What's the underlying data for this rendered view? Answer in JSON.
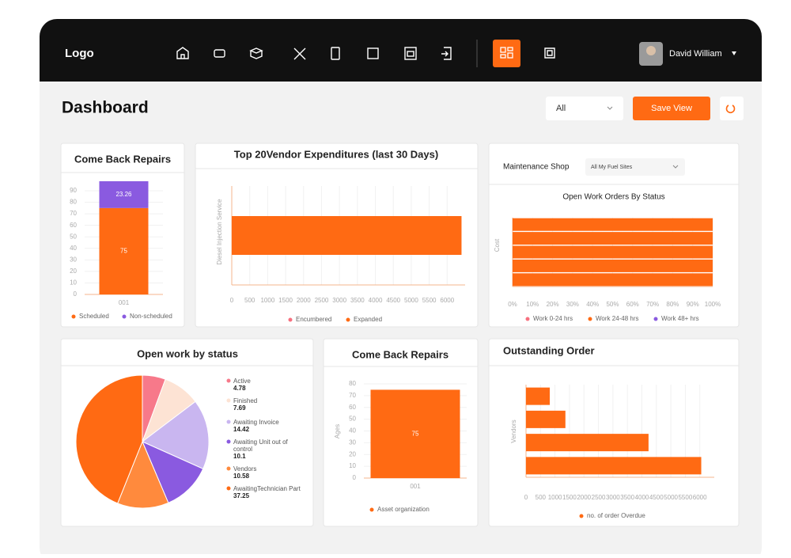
{
  "nav": {
    "logo": "Logo",
    "user": "David William"
  },
  "header": {
    "title": "Dashboard",
    "filter": "All",
    "button": "Save View"
  },
  "panels": {
    "come_back_repairs": {
      "type": "vbar",
      "title": "Come Back Repairs",
      "categories": [
        "001"
      ],
      "series": [
        {
          "name": "Scheduled",
          "color": "#ff6a13",
          "values": [
            75
          ]
        },
        {
          "name": "Non-scheduled",
          "color": "#8a5ae0",
          "values": [
            23.26
          ]
        }
      ],
      "ylim": [
        0,
        90
      ],
      "yticks": [
        0,
        10,
        20,
        30,
        40,
        50,
        60,
        70,
        80,
        90
      ],
      "grid": true
    },
    "vendor_expenditures": {
      "type": "hbar",
      "title": "Top 20Vendor Expenditures (last 30 Days)",
      "ylabel": "Diesel Injection Service",
      "categories": [
        null
      ],
      "series": [
        {
          "name": "Encumbered",
          "color": "#f7707f",
          "values": [
            0
          ]
        },
        {
          "name": "Expanded",
          "color": "#ff6a13",
          "values": [
            6400
          ]
        }
      ],
      "xlim": [
        0,
        6500
      ],
      "xticks": [
        0,
        500,
        1000,
        1500,
        2000,
        2500,
        3000,
        3500,
        4000,
        4500,
        5000,
        5500,
        6000
      ],
      "grid": true
    },
    "work_orders": {
      "type": "hbar",
      "label": "Maintenance Shop",
      "select": "All My Fuel Sites",
      "title": "Open Work Orders By Status",
      "ylabel": "Cost",
      "categories": [
        null,
        null,
        null,
        null,
        null
      ],
      "series": [
        {
          "name": "Work 0-24 hrs",
          "color": "#f7707f",
          "values": [
            0,
            0,
            0,
            0,
            0
          ]
        },
        {
          "name": "Work 24-48 hrs",
          "color": "#ff6a13",
          "values": [
            100,
            100,
            100,
            100,
            100
          ]
        },
        {
          "name": "Work 48+ hrs",
          "color": "#8a5ae0",
          "values": [
            0,
            0,
            0,
            0,
            0
          ]
        }
      ],
      "xlim": [
        0,
        100
      ],
      "xticks": [
        {
          "value": 0,
          "label": "0%"
        },
        {
          "value": 10,
          "label": "10%"
        },
        {
          "value": 20,
          "label": "20%"
        },
        {
          "value": 30,
          "label": "30%"
        },
        {
          "value": 40,
          "label": "40%"
        },
        {
          "value": 50,
          "label": "50%"
        },
        {
          "value": 60,
          "label": "60%"
        },
        {
          "value": 70,
          "label": "70%"
        },
        {
          "value": 80,
          "label": "80%"
        },
        {
          "value": 90,
          "label": "90%"
        },
        {
          "value": 100,
          "label": "100%"
        }
      ],
      "grid": true
    },
    "open_work": {
      "type": "pie",
      "title": "Open work by status",
      "categories": [
        "Active",
        "Finished",
        "Awaiting Invoice",
        "Awaiting Unit out of control",
        "Vendors",
        "AwaitingTechnician Part"
      ],
      "values": [
        4.78,
        7.69,
        14.42,
        10.1,
        10.58,
        37.25
      ],
      "colors": [
        "#f7798a",
        "#fde3d4",
        "#c9b6f0",
        "#8a5ae0",
        "#ff8a3d",
        "#ff6a13"
      ]
    },
    "asset_repairs": {
      "type": "vbar",
      "title": "Come Back Repairs",
      "ylabel": "Ages",
      "categories": [
        "001"
      ],
      "series": [
        {
          "name": "Asset organization",
          "color": "#ff6a13",
          "values": [
            75
          ]
        }
      ],
      "ylim": [
        0,
        80
      ],
      "yticks": [
        0,
        10,
        20,
        30,
        40,
        50,
        60,
        70,
        80
      ],
      "grid": true
    },
    "outstanding": {
      "type": "hbar",
      "title": "Outstanding Order",
      "ylabel": "Vendors",
      "categories": [
        null,
        null,
        null,
        null
      ],
      "series": [
        {
          "name": "no. of order Overdue",
          "color": "#ff6a13",
          "values": [
            820,
            1360,
            4230,
            6050
          ]
        }
      ],
      "xlim": [
        0,
        6500
      ],
      "xticks": [
        0,
        500,
        1000,
        1500,
        2000,
        2500,
        3000,
        3500,
        4000,
        4500,
        5000,
        5500,
        6000
      ],
      "grid": true
    }
  }
}
